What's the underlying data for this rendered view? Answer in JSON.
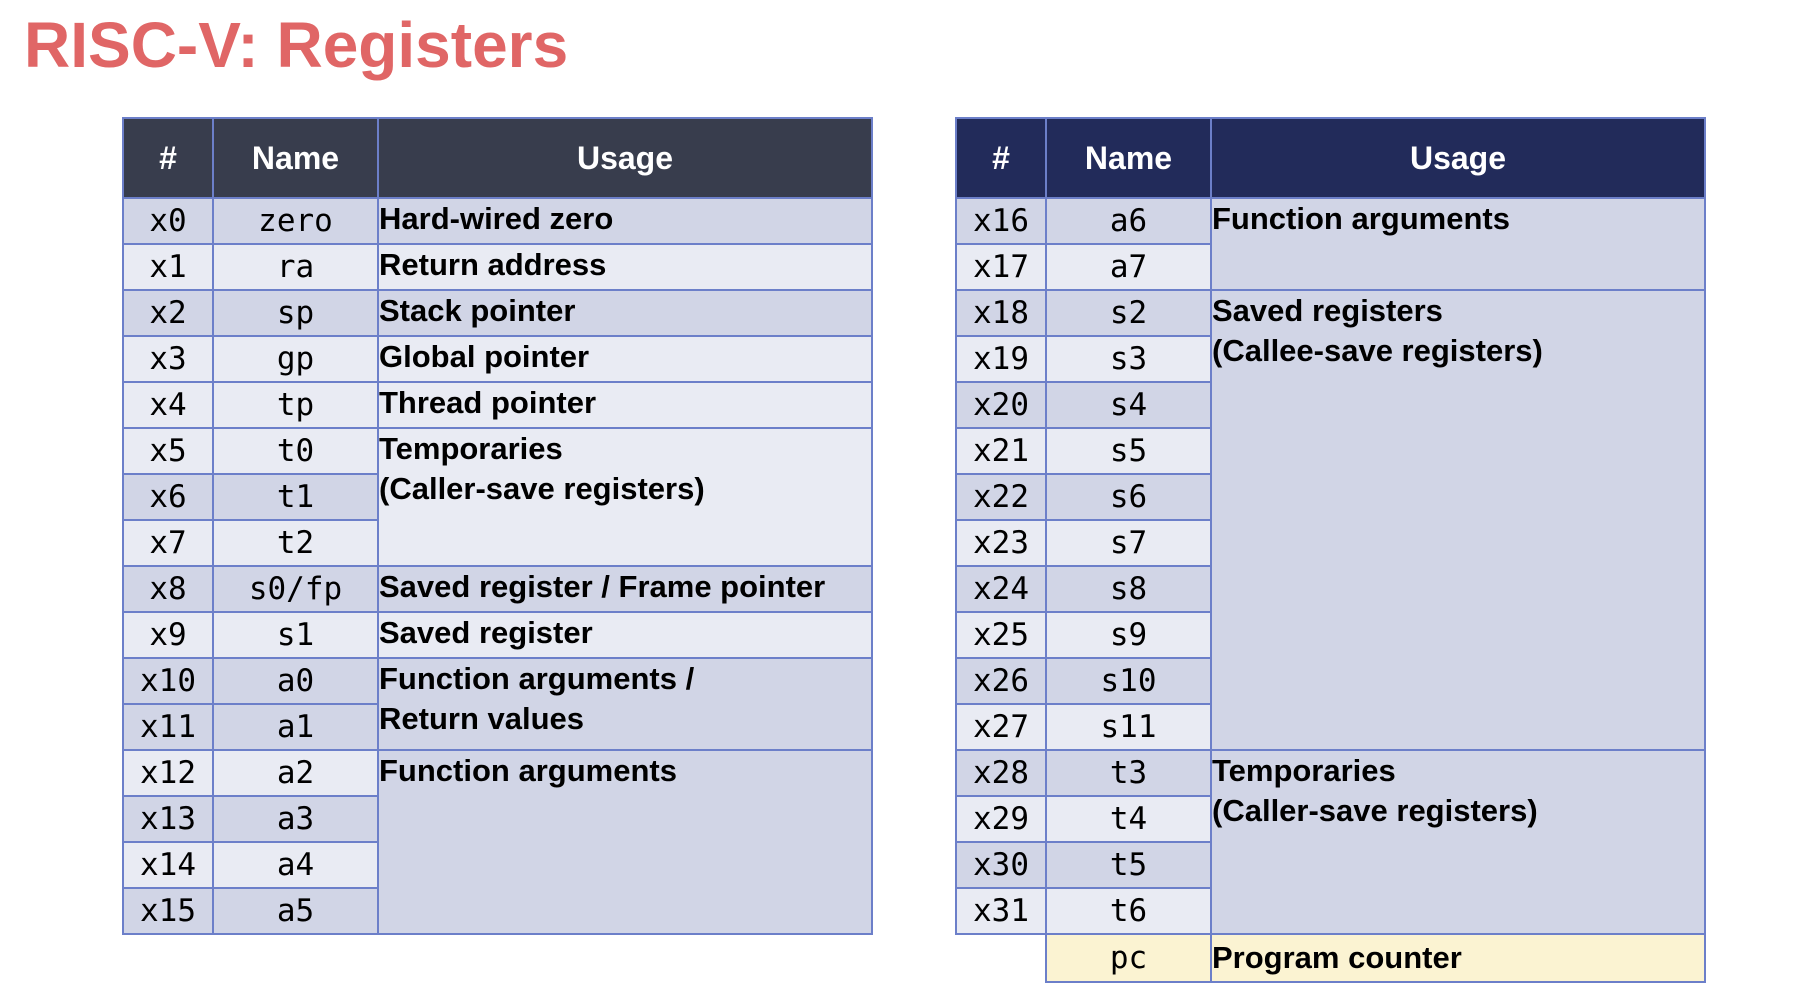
{
  "title": "RISC-V: Registers",
  "headers": {
    "num": "#",
    "name": "Name",
    "usage": "Usage"
  },
  "left": {
    "rows": [
      {
        "num": "x0",
        "name": "zero"
      },
      {
        "num": "x1",
        "name": "ra"
      },
      {
        "num": "x2",
        "name": "sp"
      },
      {
        "num": "x3",
        "name": "gp"
      },
      {
        "num": "x4",
        "name": "tp"
      },
      {
        "num": "x5",
        "name": "t0"
      },
      {
        "num": "x6",
        "name": "t1"
      },
      {
        "num": "x7",
        "name": "t2"
      },
      {
        "num": "x8",
        "name": "s0/fp"
      },
      {
        "num": "x9",
        "name": "s1"
      },
      {
        "num": "x10",
        "name": "a0"
      },
      {
        "num": "x11",
        "name": "a1"
      },
      {
        "num": "x12",
        "name": "a2"
      },
      {
        "num": "x13",
        "name": "a3"
      },
      {
        "num": "x14",
        "name": "a4"
      },
      {
        "num": "x15",
        "name": "a5"
      }
    ],
    "usages": [
      {
        "lines": [
          "Hard-wired zero"
        ]
      },
      {
        "lines": [
          "Return address"
        ]
      },
      {
        "lines": [
          "Stack pointer"
        ]
      },
      {
        "lines": [
          "Global pointer"
        ]
      },
      {
        "lines": [
          "Thread pointer"
        ]
      },
      {
        "lines": [
          "Temporaries",
          "(Caller-save registers)"
        ]
      },
      {
        "lines": [
          "Saved register / Frame pointer"
        ]
      },
      {
        "lines": [
          "Saved register"
        ]
      },
      {
        "lines": [
          "Function arguments /",
          "Return values"
        ]
      },
      {
        "lines": [
          "Function arguments"
        ]
      }
    ]
  },
  "right": {
    "rows": [
      {
        "num": "x16",
        "name": "a6"
      },
      {
        "num": "x17",
        "name": "a7"
      },
      {
        "num": "x18",
        "name": "s2"
      },
      {
        "num": "x19",
        "name": "s3"
      },
      {
        "num": "x20",
        "name": "s4"
      },
      {
        "num": "x21",
        "name": "s5"
      },
      {
        "num": "x22",
        "name": "s6"
      },
      {
        "num": "x23",
        "name": "s7"
      },
      {
        "num": "x24",
        "name": "s8"
      },
      {
        "num": "x25",
        "name": "s9"
      },
      {
        "num": "x26",
        "name": "s10"
      },
      {
        "num": "x27",
        "name": "s11"
      },
      {
        "num": "x28",
        "name": "t3"
      },
      {
        "num": "x29",
        "name": "t4"
      },
      {
        "num": "x30",
        "name": "t5"
      },
      {
        "num": "x31",
        "name": "t6"
      }
    ],
    "usages": [
      {
        "lines": [
          "Function arguments"
        ]
      },
      {
        "lines": [
          "Saved registers",
          "(Callee-save registers)"
        ]
      },
      {
        "lines": [
          "Temporaries",
          "(Caller-save registers)"
        ]
      }
    ],
    "pc": {
      "num": "",
      "name": "pc",
      "usage": "Program counter"
    }
  }
}
